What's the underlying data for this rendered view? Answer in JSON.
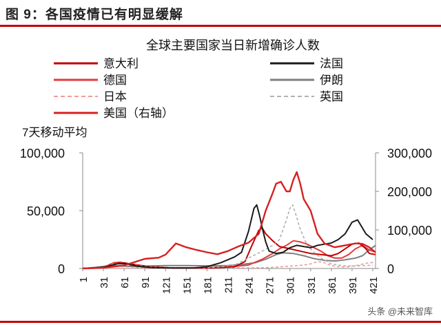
{
  "figure_title": "图 9：各国疫情已有明显缓解",
  "watermark": "头条 @未来智库",
  "colors": {
    "rule": "#c00000",
    "italy": "#c00000",
    "germany": "#e03c3c",
    "japan": "#ef9a9a",
    "usa": "#d62020",
    "france": "#1a1a1a",
    "iran": "#7f7f7f",
    "uk": "#b0b0b0"
  },
  "chart_data": {
    "type": "line",
    "title": "全球主要国家当日新增确诊人数",
    "ylabel": "7天移动平均",
    "x_ticks": [
      "1",
      "31",
      "61",
      "91",
      "121",
      "151",
      "181",
      "211",
      "241",
      "271",
      "301",
      "331",
      "361",
      "391",
      "421"
    ],
    "xlim": [
      1,
      425
    ],
    "ylim_left": [
      0,
      100000
    ],
    "ylim_right": [
      0,
      300000
    ],
    "yticks_left": [
      "0",
      "50,000",
      "100,000"
    ],
    "yticks_right": [
      "0",
      "100,000",
      "200,000",
      "300,000"
    ],
    "legend": [
      {
        "key": "italy",
        "label": "意大利",
        "style": "solid"
      },
      {
        "key": "france",
        "label": "法国",
        "style": "solid"
      },
      {
        "key": "germany",
        "label": "德国",
        "style": "solid"
      },
      {
        "key": "iran",
        "label": "伊朗",
        "style": "solid"
      },
      {
        "key": "japan",
        "label": "日本",
        "style": "dashed"
      },
      {
        "key": "uk",
        "label": "英国",
        "style": "dashed"
      },
      {
        "key": "usa",
        "label": "美国（右轴）",
        "style": "solid"
      }
    ],
    "series": [
      {
        "key": "usa",
        "name": "美国（右轴）",
        "axis": "right",
        "points": [
          [
            1,
            0
          ],
          [
            31,
            2000
          ],
          [
            61,
            8000
          ],
          [
            91,
            25000
          ],
          [
            111,
            28000
          ],
          [
            121,
            36000
          ],
          [
            136,
            65000
          ],
          [
            151,
            55000
          ],
          [
            166,
            48000
          ],
          [
            181,
            42000
          ],
          [
            196,
            37000
          ],
          [
            211,
            45000
          ],
          [
            226,
            57000
          ],
          [
            241,
            67000
          ],
          [
            256,
            90000
          ],
          [
            266,
            150000
          ],
          [
            276,
            195000
          ],
          [
            281,
            220000
          ],
          [
            288,
            225000
          ],
          [
            296,
            200000
          ],
          [
            301,
            200000
          ],
          [
            306,
            230000
          ],
          [
            311,
            250000
          ],
          [
            316,
            220000
          ],
          [
            321,
            180000
          ],
          [
            331,
            150000
          ],
          [
            341,
            90000
          ],
          [
            351,
            65000
          ],
          [
            366,
            55000
          ],
          [
            381,
            60000
          ],
          [
            396,
            65000
          ],
          [
            406,
            64000
          ],
          [
            416,
            55000
          ],
          [
            425,
            42000
          ]
        ]
      },
      {
        "key": "italy",
        "name": "意大利",
        "axis": "left",
        "points": [
          [
            1,
            0
          ],
          [
            31,
            1000
          ],
          [
            51,
            4500
          ],
          [
            61,
            4800
          ],
          [
            81,
            3000
          ],
          [
            101,
            1500
          ],
          [
            131,
            500
          ],
          [
            181,
            300
          ],
          [
            221,
            1500
          ],
          [
            236,
            6000
          ],
          [
            246,
            20000
          ],
          [
            256,
            33000
          ],
          [
            261,
            35000
          ],
          [
            266,
            30000
          ],
          [
            276,
            24000
          ],
          [
            286,
            19000
          ],
          [
            301,
            17000
          ],
          [
            316,
            15000
          ],
          [
            331,
            13000
          ],
          [
            346,
            12000
          ],
          [
            361,
            11000
          ],
          [
            371,
            13000
          ],
          [
            381,
            17000
          ],
          [
            391,
            21000
          ],
          [
            401,
            22000
          ],
          [
            411,
            17000
          ],
          [
            416,
            13000
          ],
          [
            425,
            12000
          ]
        ]
      },
      {
        "key": "france",
        "name": "法国",
        "axis": "left",
        "points": [
          [
            1,
            0
          ],
          [
            31,
            1000
          ],
          [
            51,
            4000
          ],
          [
            61,
            4200
          ],
          [
            81,
            2000
          ],
          [
            101,
            800
          ],
          [
            131,
            500
          ],
          [
            161,
            500
          ],
          [
            181,
            1500
          ],
          [
            201,
            5000
          ],
          [
            221,
            10000
          ],
          [
            231,
            14000
          ],
          [
            241,
            32000
          ],
          [
            249,
            52000
          ],
          [
            253,
            55000
          ],
          [
            257,
            46000
          ],
          [
            261,
            35000
          ],
          [
            266,
            23000
          ],
          [
            271,
            15000
          ],
          [
            281,
            13000
          ],
          [
            291,
            14000
          ],
          [
            301,
            18000
          ],
          [
            311,
            20000
          ],
          [
            321,
            19000
          ],
          [
            331,
            18000
          ],
          [
            341,
            20000
          ],
          [
            351,
            21000
          ],
          [
            361,
            22000
          ],
          [
            371,
            25000
          ],
          [
            381,
            30000
          ],
          [
            391,
            40000
          ],
          [
            399,
            42000
          ],
          [
            405,
            36000
          ],
          [
            411,
            30000
          ],
          [
            421,
            25000
          ]
        ]
      },
      {
        "key": "germany",
        "name": "德国",
        "axis": "left",
        "points": [
          [
            1,
            0
          ],
          [
            31,
            1000
          ],
          [
            46,
            5000
          ],
          [
            56,
            5500
          ],
          [
            71,
            3000
          ],
          [
            91,
            1000
          ],
          [
            131,
            400
          ],
          [
            181,
            800
          ],
          [
            216,
            1500
          ],
          [
            241,
            3000
          ],
          [
            261,
            8000
          ],
          [
            276,
            13000
          ],
          [
            286,
            17000
          ],
          [
            296,
            20000
          ],
          [
            306,
            24000
          ],
          [
            316,
            23000
          ],
          [
            326,
            21000
          ],
          [
            336,
            18000
          ],
          [
            346,
            15000
          ],
          [
            356,
            11000
          ],
          [
            366,
            9000
          ],
          [
            376,
            9000
          ],
          [
            386,
            12000
          ],
          [
            396,
            17000
          ],
          [
            406,
            20000
          ],
          [
            416,
            16000
          ],
          [
            425,
            14000
          ]
        ]
      },
      {
        "key": "iran",
        "name": "伊朗",
        "axis": "left",
        "points": [
          [
            1,
            0
          ],
          [
            21,
            1000
          ],
          [
            41,
            2500
          ],
          [
            61,
            2000
          ],
          [
            81,
            1500
          ],
          [
            101,
            2200
          ],
          [
            121,
            2500
          ],
          [
            151,
            2500
          ],
          [
            181,
            2300
          ],
          [
            211,
            2500
          ],
          [
            231,
            3500
          ],
          [
            251,
            5000
          ],
          [
            266,
            8000
          ],
          [
            281,
            12000
          ],
          [
            291,
            13500
          ],
          [
            306,
            13000
          ],
          [
            321,
            11000
          ],
          [
            336,
            8500
          ],
          [
            351,
            7000
          ],
          [
            366,
            6500
          ],
          [
            381,
            7500
          ],
          [
            396,
            9000
          ],
          [
            406,
            11000
          ],
          [
            416,
            16000
          ],
          [
            425,
            20000
          ]
        ]
      },
      {
        "key": "japan",
        "name": "日本",
        "axis": "left",
        "points": [
          [
            1,
            0
          ],
          [
            61,
            200
          ],
          [
            91,
            500
          ],
          [
            121,
            100
          ],
          [
            151,
            300
          ],
          [
            181,
            1000
          ],
          [
            211,
            700
          ],
          [
            241,
            500
          ],
          [
            271,
            800
          ],
          [
            301,
            2000
          ],
          [
            321,
            3000
          ],
          [
            331,
            4000
          ],
          [
            341,
            6000
          ],
          [
            351,
            5000
          ],
          [
            361,
            2500
          ],
          [
            371,
            1500
          ],
          [
            381,
            1200
          ],
          [
            391,
            2000
          ],
          [
            401,
            3000
          ],
          [
            411,
            4500
          ],
          [
            425,
            5500
          ]
        ]
      },
      {
        "key": "uk",
        "name": "英国",
        "axis": "left",
        "points": [
          [
            1,
            0
          ],
          [
            31,
            1000
          ],
          [
            46,
            4000
          ],
          [
            56,
            4500
          ],
          [
            76,
            3000
          ],
          [
            96,
            1500
          ],
          [
            121,
            800
          ],
          [
            151,
            600
          ],
          [
            181,
            700
          ],
          [
            201,
            1500
          ],
          [
            221,
            3000
          ],
          [
            241,
            9000
          ],
          [
            261,
            15000
          ],
          [
            276,
            20000
          ],
          [
            286,
            25000
          ],
          [
            296,
            42000
          ],
          [
            301,
            52000
          ],
          [
            305,
            55000
          ],
          [
            309,
            48000
          ],
          [
            316,
            34000
          ],
          [
            326,
            20000
          ],
          [
            336,
            14000
          ],
          [
            346,
            9000
          ],
          [
            361,
            4000
          ],
          [
            376,
            2500
          ],
          [
            391,
            2000
          ],
          [
            406,
            2500
          ],
          [
            421,
            2800
          ]
        ]
      }
    ]
  }
}
